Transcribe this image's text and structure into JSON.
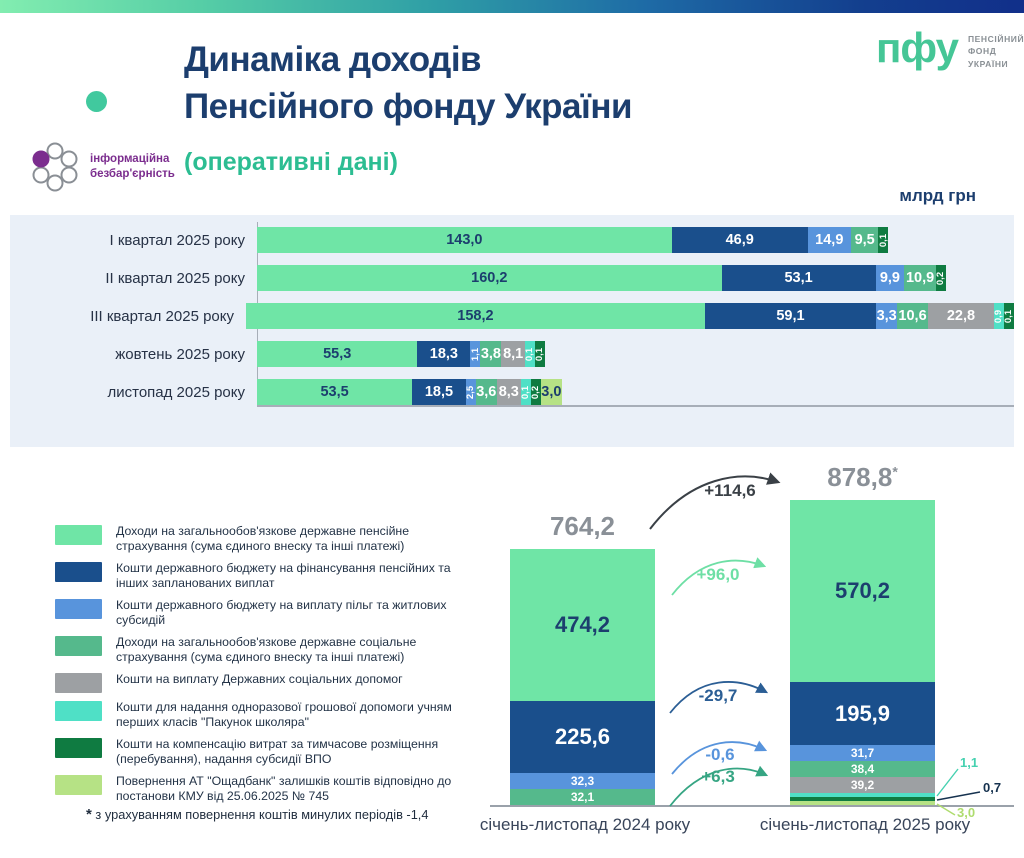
{
  "header": {
    "title_line1": "Динаміка доходів",
    "title_line2": "Пенсійного фонду України",
    "subtitle": "(оперативні дані)",
    "units_label": "млрд грн",
    "pfu_logo": {
      "abbr": "пфу",
      "name_line1": "ПЕНСІЙНИЙ",
      "name_line2": "ФОНД",
      "name_line3": "УКРАЇНИ"
    },
    "accessibility_logo": {
      "line1": "інформаційна",
      "line2": "безбар'єрність"
    }
  },
  "palette": {
    "green": "#6FE5A6",
    "navy": "#1A4F8C",
    "blue": "#5894DC",
    "sea": "#55B98C",
    "gray": "#9DA0A3",
    "mint": "#4FE0C6",
    "darkgreen": "#0F7B41",
    "lime": "#B6E285",
    "title_navy": "#1C3E6E",
    "subtitle_green": "#2CBD92",
    "accent_dot": "#41C99E",
    "logo_purple": "#7B2D8E",
    "totals_gray": "#8A9097"
  },
  "footnote": {
    "marker": "*",
    "text": "з урахуванням повернення коштів минулих періодів -1,4"
  },
  "chart_data": [
    {
      "type": "bar",
      "orientation": "horizontal",
      "stacked": true,
      "unit": "млрд грн",
      "series": [
        {
          "key": "green",
          "label": "Доходи на загальнообов'язкове державне пенсійне страхування (сума єдиного внеску та інші платежі)"
        },
        {
          "key": "navy",
          "label": "Кошти державного бюджету на фінансування пенсійних та інших запланованих виплат"
        },
        {
          "key": "blue",
          "label": "Кошти державного бюджету на виплату пільг та житлових субсидій"
        },
        {
          "key": "sea",
          "label": "Доходи на загальнообов'язкове державне соціальне страхування (сума єдиного внеску та інші платежі)"
        },
        {
          "key": "gray",
          "label": "Кошти на виплату Державних соціальних допомог"
        },
        {
          "key": "mint",
          "label": "Кошти для надання одноразової грошової допомоги учням перших класів \"Пакунок школяра\""
        },
        {
          "key": "darkgreen",
          "label": "Кошти на компенсацію витрат за тимчасове розміщення (перебування), надання субсидії ВПО"
        },
        {
          "key": "lime",
          "label": "Повернення АТ \"Ощадбанк\" залишків коштів відповідно до постанови КМУ від 25.06.2025 № 745"
        }
      ],
      "rows": [
        {
          "category": "І квартал 2025 року",
          "segments": [
            {
              "key": "green",
              "value": 143.0,
              "label": "143,0"
            },
            {
              "key": "navy",
              "value": 46.9,
              "label": "46,9"
            },
            {
              "key": "blue",
              "value": 14.9,
              "label": "14,9"
            },
            {
              "key": "sea",
              "value": 9.5,
              "label": "9,5"
            },
            {
              "key": "darkgreen",
              "value": 0.1,
              "label": "0,1"
            }
          ]
        },
        {
          "category": "ІІ квартал 2025 року",
          "segments": [
            {
              "key": "green",
              "value": 160.2,
              "label": "160,2"
            },
            {
              "key": "navy",
              "value": 53.1,
              "label": "53,1"
            },
            {
              "key": "blue",
              "value": 9.9,
              "label": "9,9"
            },
            {
              "key": "sea",
              "value": 10.9,
              "label": "10,9"
            },
            {
              "key": "darkgreen",
              "value": 0.2,
              "label": "0,2"
            }
          ]
        },
        {
          "category": "ІІІ квартал 2025 року",
          "segments": [
            {
              "key": "green",
              "value": 158.2,
              "label": "158,2"
            },
            {
              "key": "navy",
              "value": 59.1,
              "label": "59,1"
            },
            {
              "key": "blue",
              "value": 3.3,
              "label": "3,3"
            },
            {
              "key": "sea",
              "value": 10.6,
              "label": "10,6"
            },
            {
              "key": "gray",
              "value": 22.8,
              "label": "22,8"
            },
            {
              "key": "mint",
              "value": 0.9,
              "label": "0,9"
            },
            {
              "key": "darkgreen",
              "value": 0.1,
              "label": "0,1"
            }
          ]
        },
        {
          "category": "жовтень 2025 року",
          "segments": [
            {
              "key": "green",
              "value": 55.3,
              "label": "55,3"
            },
            {
              "key": "navy",
              "value": 18.3,
              "label": "18,3"
            },
            {
              "key": "blue",
              "value": 1.1,
              "label": "1,1"
            },
            {
              "key": "sea",
              "value": 3.8,
              "label": "3,8"
            },
            {
              "key": "gray",
              "value": 8.1,
              "label": "8,1"
            },
            {
              "key": "mint",
              "value": 0.1,
              "label": "0,1"
            },
            {
              "key": "darkgreen",
              "value": 0.1,
              "label": "0,1"
            }
          ]
        },
        {
          "category": "листопад 2025 року",
          "segments": [
            {
              "key": "green",
              "value": 53.5,
              "label": "53,5"
            },
            {
              "key": "navy",
              "value": 18.5,
              "label": "18,5"
            },
            {
              "key": "blue",
              "value": 2.5,
              "label": "2,5"
            },
            {
              "key": "sea",
              "value": 3.6,
              "label": "3,6"
            },
            {
              "key": "gray",
              "value": 8.3,
              "label": "8,3"
            },
            {
              "key": "mint",
              "value": 0.1,
              "label": "0,1"
            },
            {
              "key": "darkgreen",
              "value": 0.2,
              "label": "0,2"
            },
            {
              "key": "lime",
              "value": 3.0,
              "label": "3,0"
            }
          ]
        }
      ]
    },
    {
      "type": "bar",
      "orientation": "vertical",
      "stacked": true,
      "unit": "млрд грн",
      "columns": [
        {
          "category": "січень-листопад 2024 року",
          "total": 764.2,
          "total_label": "764,2",
          "segments": [
            {
              "key": "green",
              "value": 474.2,
              "label": "474,2"
            },
            {
              "key": "navy",
              "value": 225.6,
              "label": "225,6"
            },
            {
              "key": "blue",
              "value": 32.3,
              "label": "32,3"
            },
            {
              "key": "sea",
              "value": 32.1,
              "label": "32,1"
            }
          ]
        },
        {
          "category": "січень-листопад 2025 року",
          "total": 878.8,
          "total_label": "878,8",
          "total_note_marker": "*",
          "segments": [
            {
              "key": "green",
              "value": 570.2,
              "label": "570,2"
            },
            {
              "key": "navy",
              "value": 195.9,
              "label": "195,9"
            },
            {
              "key": "blue",
              "value": 31.7,
              "label": "31,7"
            },
            {
              "key": "sea",
              "value": 38.4,
              "label": "38,4"
            },
            {
              "key": "gray",
              "value": 39.2,
              "label": "39,2"
            },
            {
              "key": "mint",
              "value": 1.1,
              "label": "1,1",
              "label_outside": true
            },
            {
              "key": "darkgreen",
              "value": 0.7,
              "label": "0,7",
              "label_outside": true
            },
            {
              "key": "lime",
              "value": 3.0,
              "label": "3,0",
              "label_outside": true
            }
          ]
        }
      ],
      "change_arrows": [
        {
          "label": "+114,6",
          "value": 114.6,
          "color": "#3A4046"
        },
        {
          "label": "+96,0",
          "value": 96.0,
          "color": "#6EDFA5"
        },
        {
          "label": "-29,7",
          "value": -29.7,
          "color": "#2B5E95"
        },
        {
          "label": "-0,6",
          "value": -0.6,
          "color": "#5894DC"
        },
        {
          "label": "+6,3",
          "value": 6.3,
          "color": "#36A583"
        }
      ],
      "outside_label_colors": {
        "mint": "#45D1B0",
        "darkgreen": "#16324F",
        "lime": "#AEDC6E"
      }
    }
  ]
}
